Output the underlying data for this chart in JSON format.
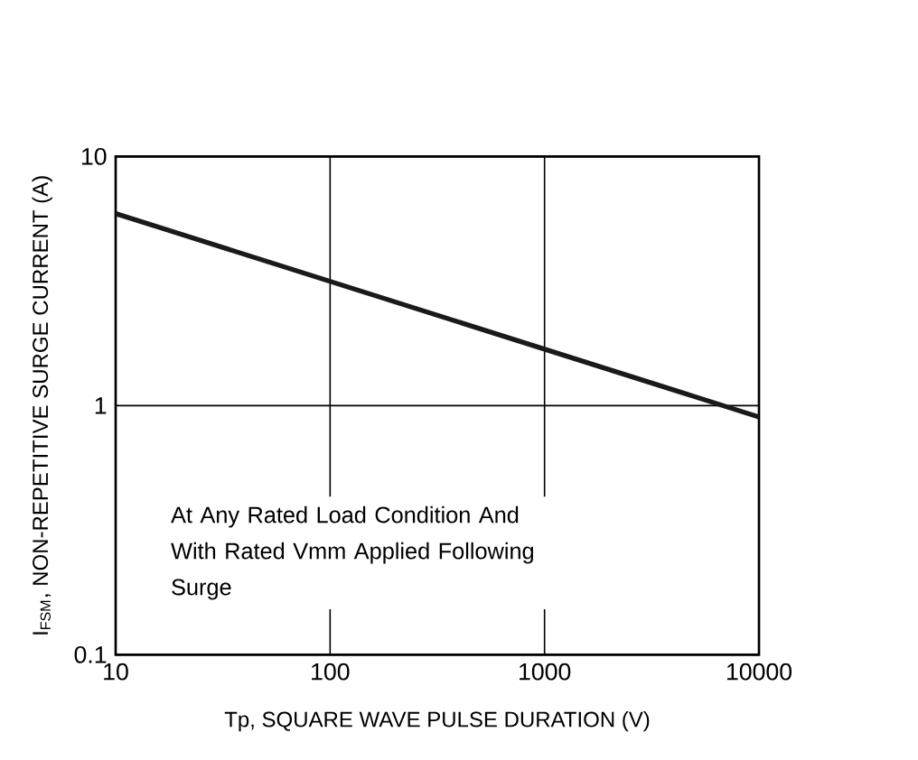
{
  "chart_data": {
    "type": "line",
    "xlabel": "Tp, SQUARE WAVE PULSE DURATION (V)",
    "ylabel": "I$_{FSM}$, NON-REPETITIVE SURGE CURRENT (A)",
    "x": [
      10,
      10000
    ],
    "series": [
      {
        "color": "#1a1a1a",
        "values": [
          5.9,
          0.9
        ]
      }
    ],
    "log": "xy",
    "xlim": [
      10,
      10000
    ],
    "ylim": [
      0.1,
      10
    ],
    "xticks": [
      10,
      100,
      1000,
      10000
    ],
    "yticks": [
      0.1,
      1,
      10
    ],
    "grid": true,
    "marker": "none",
    "line_style": "solid",
    "annotations": [
      "At Any Rated Load Condition And With Rated Vmm Applied Following Surge"
    ]
  }
}
